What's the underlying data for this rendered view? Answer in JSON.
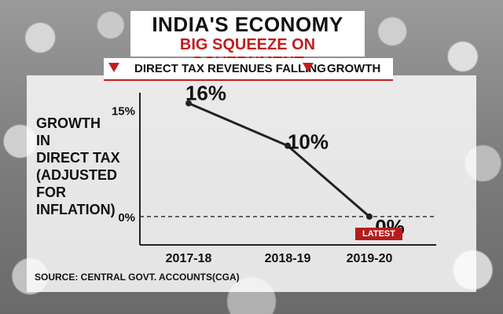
{
  "header": {
    "title": "INDIA'S ECONOMY",
    "subtitle": "BIG SQUEEZE ON GOVERNMENT",
    "indicators": [
      {
        "icon": "down-arrow-icon",
        "label": "DIRECT TAX REVENUES FALLING"
      },
      {
        "icon": "down-arrow-icon",
        "label": "GROWTH"
      }
    ]
  },
  "source": "SOURCE: CENTRAL GOVT. ACCOUNTS(CGA)",
  "latest_badge": "LATEST",
  "colors": {
    "accent_red": "#c21d1d",
    "line": "#222222",
    "panel": "#ffffff"
  },
  "chart_data": {
    "type": "line",
    "ylabel": "GROWTH\nIN\nDIRECT TAX\n(ADJUSTED\nFOR\nINFLATION)",
    "xlabel": "",
    "categories": [
      "2017-18",
      "2018-19",
      "2019-20"
    ],
    "series": [
      {
        "values": [
          16,
          10,
          0
        ],
        "labels": [
          "16%",
          "10%",
          "0%"
        ]
      }
    ],
    "ytick_labels": [
      "15%",
      "0%"
    ],
    "ytick_values": [
      15,
      0
    ],
    "reference_line": 0,
    "ylim": [
      -4,
      17.5
    ],
    "grid": false
  }
}
